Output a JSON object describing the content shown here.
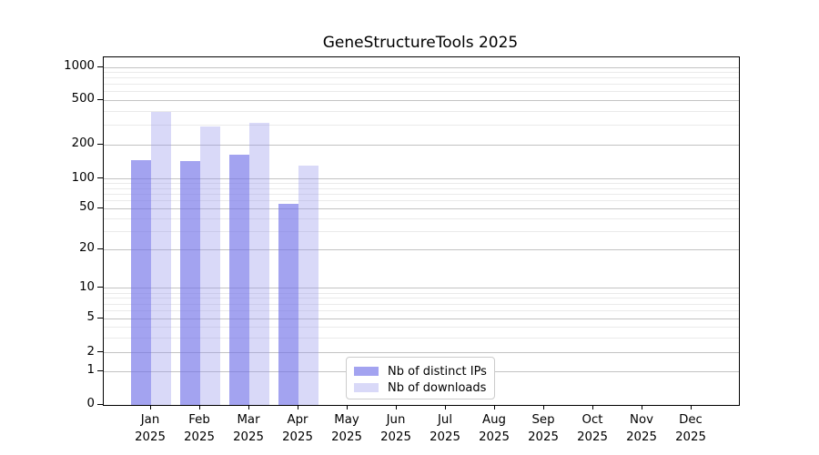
{
  "chart_data": {
    "type": "bar",
    "title": "GeneStructureTools 2025",
    "categories": [
      {
        "month": "Jan",
        "year": "2025"
      },
      {
        "month": "Feb",
        "year": "2025"
      },
      {
        "month": "Mar",
        "year": "2025"
      },
      {
        "month": "Apr",
        "year": "2025"
      },
      {
        "month": "May",
        "year": "2025"
      },
      {
        "month": "Jun",
        "year": "2025"
      },
      {
        "month": "Jul",
        "year": "2025"
      },
      {
        "month": "Aug",
        "year": "2025"
      },
      {
        "month": "Sep",
        "year": "2025"
      },
      {
        "month": "Oct",
        "year": "2025"
      },
      {
        "month": "Nov",
        "year": "2025"
      },
      {
        "month": "Dec",
        "year": "2025"
      }
    ],
    "series": [
      {
        "name": "Nb of distinct IPs",
        "color": "#a3a3f0",
        "values": [
          146,
          143,
          163,
          56,
          null,
          null,
          null,
          null,
          null,
          null,
          null,
          null
        ]
      },
      {
        "name": "Nb of downloads",
        "color": "#d9d9f8",
        "values": [
          391,
          292,
          313,
          132,
          null,
          null,
          null,
          null,
          null,
          null,
          null,
          null
        ]
      }
    ],
    "yscale": "symlog",
    "ylim": [
      0,
      1100
    ],
    "yticks": [
      0,
      1,
      2,
      5,
      10,
      20,
      50,
      100,
      200,
      500,
      1000
    ],
    "grid": true,
    "legend_position": "bottom-center"
  }
}
